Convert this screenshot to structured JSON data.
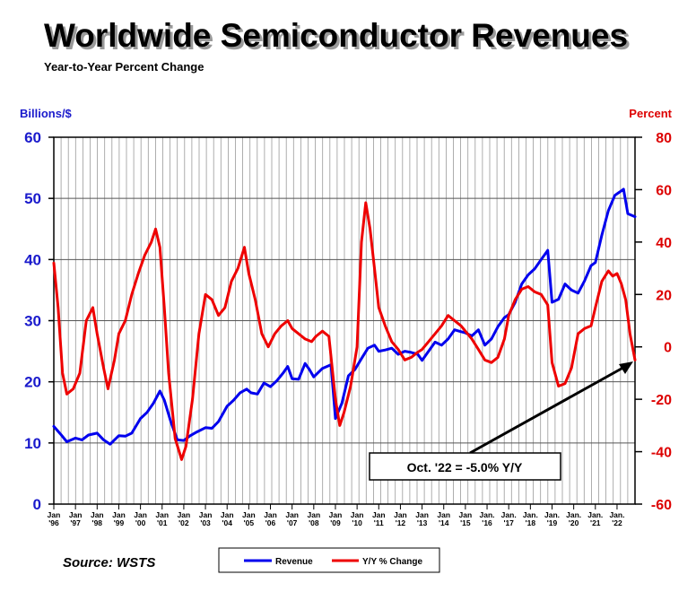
{
  "chart_data": {
    "type": "line",
    "title": "Worldwide Semiconductor Revenues",
    "subtitle": "Year-to-Year Percent Change",
    "left_axis_label": "Billions/$",
    "right_axis_label": "Percent",
    "left_ylim": [
      0,
      60
    ],
    "right_ylim": [
      -60,
      80
    ],
    "left_ticks": [
      "0",
      "10",
      "20",
      "30",
      "40",
      "50",
      "60"
    ],
    "right_ticks": [
      "-60",
      "-40",
      "-20",
      "0",
      "20",
      "40",
      "60",
      "80"
    ],
    "x_ticks": [
      {
        "top": "Jan",
        "bottom": "'96"
      },
      {
        "top": "Jan",
        "bottom": "'97"
      },
      {
        "top": "Jan",
        "bottom": "'98"
      },
      {
        "top": "Jan",
        "bottom": "'99"
      },
      {
        "top": "Jan",
        "bottom": "'00"
      },
      {
        "top": "Jan",
        "bottom": "'01"
      },
      {
        "top": "Jan",
        "bottom": "'02"
      },
      {
        "top": "Jan",
        "bottom": "'03"
      },
      {
        "top": "Jan",
        "bottom": "'04"
      },
      {
        "top": "Jan",
        "bottom": "'05"
      },
      {
        "top": "Jan",
        "bottom": "'06"
      },
      {
        "top": "Jan",
        "bottom": "'07"
      },
      {
        "top": "Jan",
        "bottom": "'08"
      },
      {
        "top": "Jan",
        "bottom": "'09"
      },
      {
        "top": "Jan",
        "bottom": "'10"
      },
      {
        "top": "Jan",
        "bottom": "'11"
      },
      {
        "top": "Jan",
        "bottom": "'12"
      },
      {
        "top": "Jan",
        "bottom": "'13"
      },
      {
        "top": "Jan",
        "bottom": "'14"
      },
      {
        "top": "Jan",
        "bottom": "'15"
      },
      {
        "top": "Jan.",
        "bottom": "'16"
      },
      {
        "top": "Jan.",
        "bottom": "'17"
      },
      {
        "top": "Jan.",
        "bottom": "'18"
      },
      {
        "top": "Jan.",
        "bottom": "'19"
      },
      {
        "top": "Jan.",
        "bottom": "'20"
      },
      {
        "top": "Jan.",
        "bottom": "'21"
      },
      {
        "top": "Jan.",
        "bottom": "'22"
      }
    ],
    "x_range": [
      1996.0,
      2022.83
    ],
    "grid": true,
    "colors": {
      "revenue": "#0000ee",
      "yoy": "#ee0000",
      "left_axis": "#1a1acc",
      "right_axis": "#dd0000"
    },
    "series": [
      {
        "name": "Revenue",
        "axis": "left",
        "points": [
          [
            1996.0,
            12.7
          ],
          [
            1996.3,
            11.5
          ],
          [
            1996.6,
            10.2
          ],
          [
            1997.0,
            10.8
          ],
          [
            1997.3,
            10.5
          ],
          [
            1997.6,
            11.3
          ],
          [
            1998.0,
            11.6
          ],
          [
            1998.3,
            10.5
          ],
          [
            1998.6,
            9.8
          ],
          [
            1999.0,
            11.2
          ],
          [
            1999.3,
            11.1
          ],
          [
            1999.6,
            11.6
          ],
          [
            2000.0,
            14.0
          ],
          [
            2000.3,
            15.0
          ],
          [
            2000.6,
            16.5
          ],
          [
            2000.9,
            18.5
          ],
          [
            2001.1,
            17.0
          ],
          [
            2001.4,
            13.5
          ],
          [
            2001.7,
            10.5
          ],
          [
            2002.0,
            10.4
          ],
          [
            2002.3,
            11.2
          ],
          [
            2002.6,
            11.8
          ],
          [
            2003.0,
            12.5
          ],
          [
            2003.3,
            12.4
          ],
          [
            2003.6,
            13.5
          ],
          [
            2004.0,
            16.0
          ],
          [
            2004.3,
            17.0
          ],
          [
            2004.6,
            18.2
          ],
          [
            2004.9,
            18.8
          ],
          [
            2005.1,
            18.2
          ],
          [
            2005.4,
            18.0
          ],
          [
            2005.7,
            19.8
          ],
          [
            2006.0,
            19.2
          ],
          [
            2006.3,
            20.2
          ],
          [
            2006.6,
            21.5
          ],
          [
            2006.8,
            22.5
          ],
          [
            2007.0,
            20.5
          ],
          [
            2007.3,
            20.4
          ],
          [
            2007.6,
            23.0
          ],
          [
            2007.8,
            22.0
          ],
          [
            2008.0,
            20.8
          ],
          [
            2008.4,
            22.2
          ],
          [
            2008.8,
            22.8
          ],
          [
            2009.0,
            14.0
          ],
          [
            2009.3,
            16.5
          ],
          [
            2009.6,
            21.0
          ],
          [
            2009.9,
            22.0
          ],
          [
            2010.2,
            23.8
          ],
          [
            2010.5,
            25.5
          ],
          [
            2010.8,
            26.0
          ],
          [
            2011.0,
            25.0
          ],
          [
            2011.3,
            25.2
          ],
          [
            2011.6,
            25.5
          ],
          [
            2011.9,
            24.5
          ],
          [
            2012.2,
            25.0
          ],
          [
            2012.5,
            24.8
          ],
          [
            2012.8,
            24.5
          ],
          [
            2013.0,
            23.5
          ],
          [
            2013.3,
            25.0
          ],
          [
            2013.6,
            26.5
          ],
          [
            2013.9,
            26.0
          ],
          [
            2014.2,
            27.0
          ],
          [
            2014.5,
            28.5
          ],
          [
            2014.8,
            28.2
          ],
          [
            2015.0,
            28.0
          ],
          [
            2015.3,
            27.5
          ],
          [
            2015.6,
            28.5
          ],
          [
            2015.9,
            26.0
          ],
          [
            2016.2,
            27.0
          ],
          [
            2016.5,
            29.0
          ],
          [
            2016.8,
            30.5
          ],
          [
            2017.0,
            31.0
          ],
          [
            2017.3,
            33.0
          ],
          [
            2017.6,
            36.0
          ],
          [
            2017.9,
            37.5
          ],
          [
            2018.2,
            38.5
          ],
          [
            2018.5,
            40.0
          ],
          [
            2018.8,
            41.5
          ],
          [
            2019.0,
            33.0
          ],
          [
            2019.3,
            33.5
          ],
          [
            2019.6,
            36.0
          ],
          [
            2019.9,
            35.0
          ],
          [
            2020.2,
            34.5
          ],
          [
            2020.5,
            36.5
          ],
          [
            2020.8,
            39.0
          ],
          [
            2021.0,
            39.5
          ],
          [
            2021.3,
            44.0
          ],
          [
            2021.6,
            48.0
          ],
          [
            2021.9,
            50.5
          ],
          [
            2022.1,
            51.0
          ],
          [
            2022.3,
            51.5
          ],
          [
            2022.5,
            47.5
          ],
          [
            2022.83,
            47.0
          ]
        ]
      },
      {
        "name": "Y/Y % Change",
        "axis": "right",
        "points": [
          [
            1996.0,
            32
          ],
          [
            1996.2,
            15
          ],
          [
            1996.4,
            -10
          ],
          [
            1996.6,
            -18
          ],
          [
            1996.9,
            -16
          ],
          [
            1997.2,
            -10
          ],
          [
            1997.5,
            10
          ],
          [
            1997.8,
            15
          ],
          [
            1998.0,
            5
          ],
          [
            1998.3,
            -8
          ],
          [
            1998.5,
            -16
          ],
          [
            1998.8,
            -5
          ],
          [
            1999.0,
            5
          ],
          [
            1999.3,
            10
          ],
          [
            1999.6,
            20
          ],
          [
            1999.9,
            28
          ],
          [
            2000.2,
            35
          ],
          [
            2000.5,
            40
          ],
          [
            2000.7,
            45
          ],
          [
            2000.9,
            38
          ],
          [
            2001.1,
            15
          ],
          [
            2001.3,
            -10
          ],
          [
            2001.6,
            -35
          ],
          [
            2001.9,
            -43
          ],
          [
            2002.1,
            -38
          ],
          [
            2002.4,
            -20
          ],
          [
            2002.7,
            5
          ],
          [
            2003.0,
            20
          ],
          [
            2003.3,
            18
          ],
          [
            2003.6,
            12
          ],
          [
            2003.9,
            15
          ],
          [
            2004.2,
            25
          ],
          [
            2004.5,
            30
          ],
          [
            2004.8,
            38
          ],
          [
            2005.0,
            28
          ],
          [
            2005.3,
            18
          ],
          [
            2005.6,
            5
          ],
          [
            2005.9,
            0
          ],
          [
            2006.2,
            5
          ],
          [
            2006.5,
            8
          ],
          [
            2006.8,
            10
          ],
          [
            2007.0,
            7
          ],
          [
            2007.3,
            5
          ],
          [
            2007.6,
            3
          ],
          [
            2007.9,
            2
          ],
          [
            2008.1,
            4
          ],
          [
            2008.4,
            6
          ],
          [
            2008.7,
            4
          ],
          [
            2009.0,
            -20
          ],
          [
            2009.2,
            -30
          ],
          [
            2009.4,
            -25
          ],
          [
            2009.7,
            -15
          ],
          [
            2010.0,
            0
          ],
          [
            2010.2,
            40
          ],
          [
            2010.4,
            55
          ],
          [
            2010.6,
            45
          ],
          [
            2010.8,
            30
          ],
          [
            2011.0,
            15
          ],
          [
            2011.3,
            8
          ],
          [
            2011.6,
            2
          ],
          [
            2011.9,
            -1
          ],
          [
            2012.2,
            -5
          ],
          [
            2012.5,
            -4
          ],
          [
            2012.8,
            -2
          ],
          [
            2013.0,
            -1
          ],
          [
            2013.3,
            2
          ],
          [
            2013.6,
            5
          ],
          [
            2013.9,
            8
          ],
          [
            2014.2,
            12
          ],
          [
            2014.5,
            10
          ],
          [
            2014.8,
            8
          ],
          [
            2015.0,
            6
          ],
          [
            2015.3,
            3
          ],
          [
            2015.6,
            -1
          ],
          [
            2015.9,
            -5
          ],
          [
            2016.2,
            -6
          ],
          [
            2016.5,
            -4
          ],
          [
            2016.8,
            3
          ],
          [
            2017.0,
            12
          ],
          [
            2017.3,
            18
          ],
          [
            2017.6,
            22
          ],
          [
            2017.9,
            23
          ],
          [
            2018.2,
            21
          ],
          [
            2018.5,
            20
          ],
          [
            2018.8,
            16
          ],
          [
            2019.0,
            -6
          ],
          [
            2019.3,
            -15
          ],
          [
            2019.6,
            -14
          ],
          [
            2019.9,
            -8
          ],
          [
            2020.2,
            5
          ],
          [
            2020.5,
            7
          ],
          [
            2020.8,
            8
          ],
          [
            2021.0,
            15
          ],
          [
            2021.3,
            25
          ],
          [
            2021.6,
            29
          ],
          [
            2021.8,
            27
          ],
          [
            2022.0,
            28
          ],
          [
            2022.2,
            24
          ],
          [
            2022.4,
            18
          ],
          [
            2022.6,
            5
          ],
          [
            2022.83,
            -5
          ]
        ]
      }
    ],
    "annotation": "Oct. '22 = -5.0% Y/Y",
    "source": "Source: WSTS",
    "legend": [
      {
        "label": "Revenue",
        "color": "#0000ee"
      },
      {
        "label": "Y/Y % Change",
        "color": "#ee0000"
      }
    ],
    "legend_position": "bottom-center"
  }
}
